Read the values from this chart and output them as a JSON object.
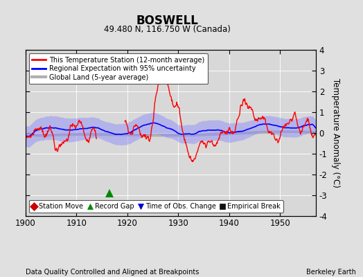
{
  "title": "BOSWELL",
  "subtitle": "49.480 N, 116.750 W (Canada)",
  "xlabel_bottom": "Data Quality Controlled and Aligned at Breakpoints",
  "xlabel_right": "Berkeley Earth",
  "ylabel": "Temperature Anomaly (°C)",
  "xmin": 1900,
  "xmax": 1957,
  "ymin": -4,
  "ymax": 4,
  "yticks": [
    -4,
    -3,
    -2,
    -1,
    0,
    1,
    2,
    3,
    4
  ],
  "xticks": [
    1900,
    1910,
    1920,
    1930,
    1940,
    1950
  ],
  "bg_color": "#e0e0e0",
  "plot_bg_color": "#d8d8d8",
  "station_color": "#ff0000",
  "regional_color": "#0000ff",
  "regional_fill_color": "#8888ff",
  "global_color": "#b0b0b0",
  "record_gap_x": 1916.5,
  "record_gap_y": -2.9,
  "legend_items": [
    {
      "label": "Station Move",
      "color": "#cc0000",
      "marker": "D"
    },
    {
      "label": "Record Gap",
      "color": "#008800",
      "marker": "^"
    },
    {
      "label": "Time of Obs. Change",
      "color": "#0000cc",
      "marker": "v"
    },
    {
      "label": "Empirical Break",
      "color": "#111111",
      "marker": "s"
    }
  ]
}
